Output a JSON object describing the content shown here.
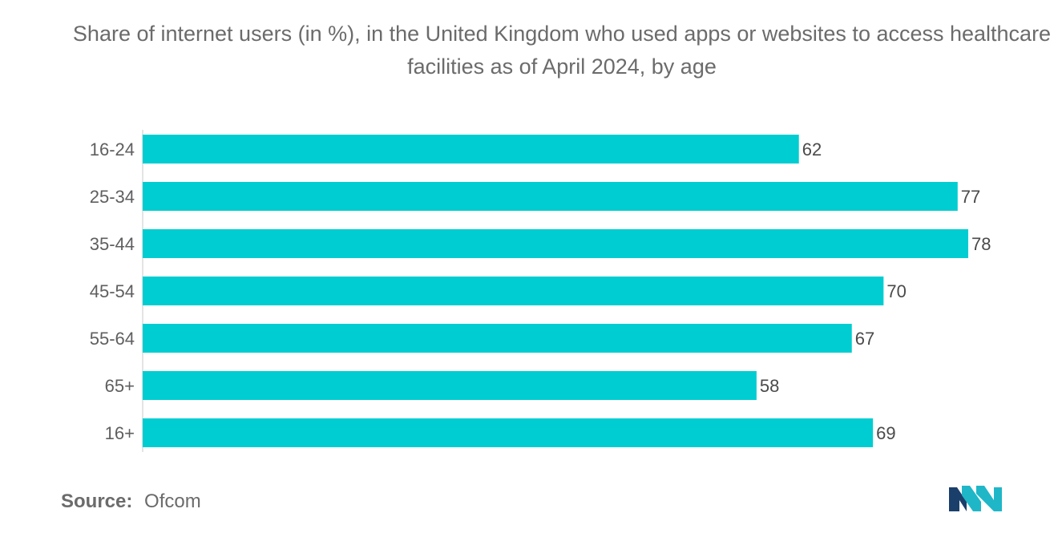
{
  "title": "Share of internet users (in %), in the United Kingdom who used apps or websites to access healthcare facilities as of April 2024, by age",
  "source": {
    "label": "Source:",
    "value": "Ofcom"
  },
  "logo": {
    "name": "mordor-intelligence-logo",
    "colors": [
      "#1b3f6b",
      "#1fb7c8"
    ]
  },
  "colors": {
    "bar": "#00cdd1",
    "axis": "#c8c8c8",
    "text": "#6b6b6b"
  },
  "chart_data": {
    "type": "bar",
    "orientation": "horizontal",
    "title": "Share of internet users (in %), in the United Kingdom who used apps or websites to access healthcare facilities as of April 2024, by age",
    "categories": [
      "16-24",
      "25-34",
      "35-44",
      "45-54",
      "55-64",
      "65+",
      "16+"
    ],
    "values": [
      62,
      77,
      78,
      70,
      67,
      58,
      69
    ],
    "xlim": [
      0,
      78
    ],
    "grid": false,
    "legend": "none",
    "data_labels": true
  }
}
